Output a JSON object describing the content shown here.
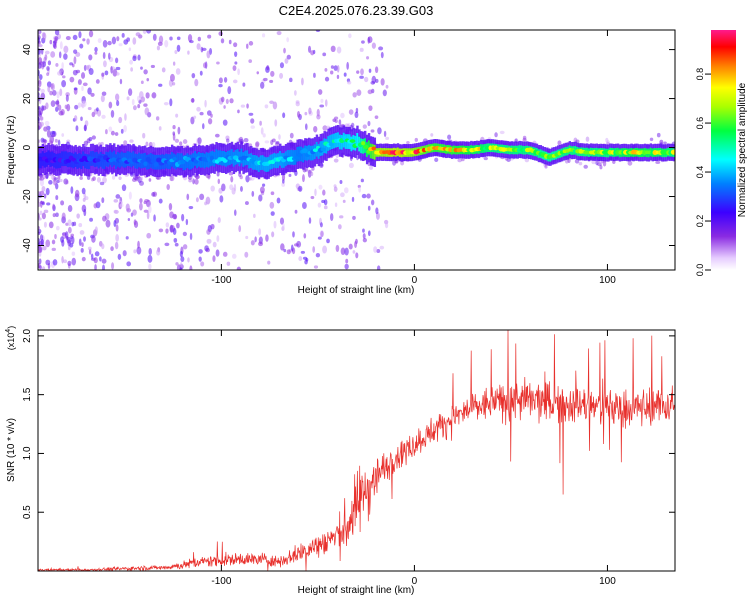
{
  "title": "C2E4.2025.076.23.39.G03",
  "colors": {
    "snr_line": "#e8302c",
    "axis": "#000000",
    "background": "#ffffff"
  },
  "chart_data": [
    {
      "type": "heatmap",
      "xlabel": "Height of straight line (km)",
      "ylabel": "Frequency (Hz)",
      "xlim": [
        -195,
        135
      ],
      "ylim": [
        -50,
        48
      ],
      "x_ticks": [
        -100,
        0,
        100
      ],
      "y_ticks": [
        -40,
        -20,
        0,
        20,
        40
      ],
      "x_tick_labels": [
        "-100",
        "0",
        "100"
      ],
      "y_tick_labels": [
        "-40",
        "-20",
        "0",
        "20",
        "40"
      ],
      "grid": false,
      "colorbar": {
        "label": "Normalized spectral amplitude",
        "range": [
          0,
          0.98
        ],
        "ticks": [
          0.0,
          0.2,
          0.4,
          0.6,
          0.8
        ],
        "tick_labels": [
          "0.0",
          "0.2",
          "0.4",
          "0.6",
          "0.8"
        ],
        "colormap": "rainbow (white-purple-blue-cyan-green-yellow-red-magenta)"
      },
      "ridge": {
        "x": [
          -190,
          -170,
          -150,
          -130,
          -110,
          -90,
          -80,
          -70,
          -60,
          -50,
          -40,
          -30,
          -20,
          -10,
          0,
          10,
          20,
          30,
          40,
          50,
          60,
          70,
          80,
          90,
          100,
          110,
          120,
          135
        ],
        "y": [
          -5,
          -5,
          -5,
          -6,
          -5,
          -4,
          -7,
          -5,
          -3,
          -1,
          3,
          2,
          -2,
          -2,
          -2,
          0,
          -1,
          -1,
          0,
          -1,
          -1,
          -4,
          -1,
          -2,
          -2,
          -2,
          -2,
          -2
        ],
        "amplitude": [
          0.25,
          0.3,
          0.35,
          0.35,
          0.4,
          0.42,
          0.45,
          0.45,
          0.4,
          0.45,
          0.5,
          0.55,
          0.9,
          0.95,
          0.9,
          0.8,
          0.8,
          0.75,
          0.7,
          0.7,
          0.7,
          0.65,
          0.7,
          0.7,
          0.7,
          0.75,
          0.75,
          0.7
        ]
      }
    },
    {
      "type": "line",
      "xlabel": "Height of straight line (km)",
      "ylabel": "SNR (10 * v/v)",
      "y_multiplier_label": "(x10",
      "y_multiplier_exponent": "4",
      "y_multiplier_close": ")",
      "xlim": [
        -195,
        135
      ],
      "ylim": [
        0,
        2.05
      ],
      "x_ticks": [
        -100,
        0,
        100
      ],
      "y_ticks": [
        0.5,
        1.0,
        1.5,
        2.0
      ],
      "x_tick_labels": [
        "-100",
        "0",
        "100"
      ],
      "y_tick_labels": [
        "0.5",
        "1.0",
        "1.5",
        "2.0"
      ],
      "grid": false,
      "series": [
        {
          "color": "#e8302c",
          "envelope_x": [
            -195,
            -170,
            -150,
            -130,
            -120,
            -110,
            -100,
            -90,
            -80,
            -70,
            -60,
            -50,
            -40,
            -35,
            -30,
            -25,
            -20,
            -15,
            -10,
            -5,
            0,
            10,
            20,
            30,
            40,
            50,
            60,
            70,
            80,
            90,
            100,
            110,
            120,
            135
          ],
          "mean": [
            0.01,
            0.01,
            0.02,
            0.03,
            0.05,
            0.08,
            0.09,
            0.1,
            0.1,
            0.08,
            0.15,
            0.22,
            0.3,
            0.38,
            0.55,
            0.7,
            0.8,
            0.88,
            0.97,
            1.03,
            1.08,
            1.2,
            1.3,
            1.38,
            1.43,
            1.45,
            1.45,
            1.43,
            1.42,
            1.4,
            1.4,
            1.38,
            1.4,
            1.42
          ],
          "spread": [
            0.01,
            0.01,
            0.02,
            0.02,
            0.04,
            0.05,
            0.06,
            0.06,
            0.06,
            0.05,
            0.09,
            0.12,
            0.16,
            0.25,
            0.3,
            0.32,
            0.2,
            0.15,
            0.12,
            0.12,
            0.12,
            0.13,
            0.14,
            0.15,
            0.16,
            0.18,
            0.2,
            0.2,
            0.18,
            0.18,
            0.18,
            0.18,
            0.17,
            0.17
          ]
        }
      ]
    }
  ]
}
